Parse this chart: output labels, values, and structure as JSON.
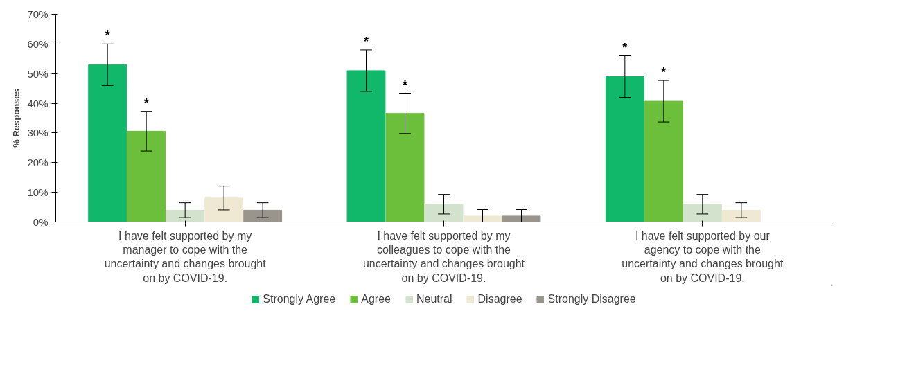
{
  "chart_data": {
    "type": "bar",
    "ylabel": "% Responses",
    "categories": [
      "I have felt supported by my manager to cope with the uncertainty and changes brought on by COVID-19.",
      "I have felt supported by my colleagues to cope with the uncertainty and changes brought on by COVID-19.",
      "I have felt supported by our agency to cope with the uncertainty and changes brought on by COVID-19."
    ],
    "series": [
      {
        "name": "Strongly Agree",
        "color": "#12b86a",
        "values": [
          53,
          51,
          49
        ],
        "errors": [
          7,
          7,
          7
        ]
      },
      {
        "name": "Agree",
        "color": "#6cbf3a",
        "values": [
          30.6,
          36.6,
          40.7
        ],
        "errors": [
          6.7,
          6.8,
          7
        ]
      },
      {
        "name": "Neutral",
        "color": "#d3e2cd",
        "values": [
          4,
          6,
          6
        ],
        "errors": [
          2.5,
          3.3,
          3.3
        ]
      },
      {
        "name": "Disagree",
        "color": "#efe8d2",
        "values": [
          8.1,
          2,
          4
        ],
        "errors": [
          4,
          2.2,
          2.5
        ]
      },
      {
        "name": "Strongly Disagree",
        "color": "#9a958c",
        "values": [
          4,
          2,
          null
        ],
        "errors": [
          2.5,
          2.2,
          null
        ]
      }
    ],
    "annotations": [
      "*",
      "*",
      "*",
      "*",
      "*",
      "*"
    ],
    "ylim": [
      0,
      70
    ],
    "yticks": [
      {
        "value": 0,
        "label": "0%"
      },
      {
        "value": 10,
        "label": "10%"
      },
      {
        "value": 20,
        "label": "20%"
      },
      {
        "value": 30,
        "label": "30%"
      },
      {
        "value": 40,
        "label": "40%"
      },
      {
        "value": 50,
        "label": "50%"
      },
      {
        "value": 60,
        "label": "60%"
      },
      {
        "value": 70,
        "label": "70%"
      }
    ],
    "grid": false,
    "legend": "bottom"
  }
}
